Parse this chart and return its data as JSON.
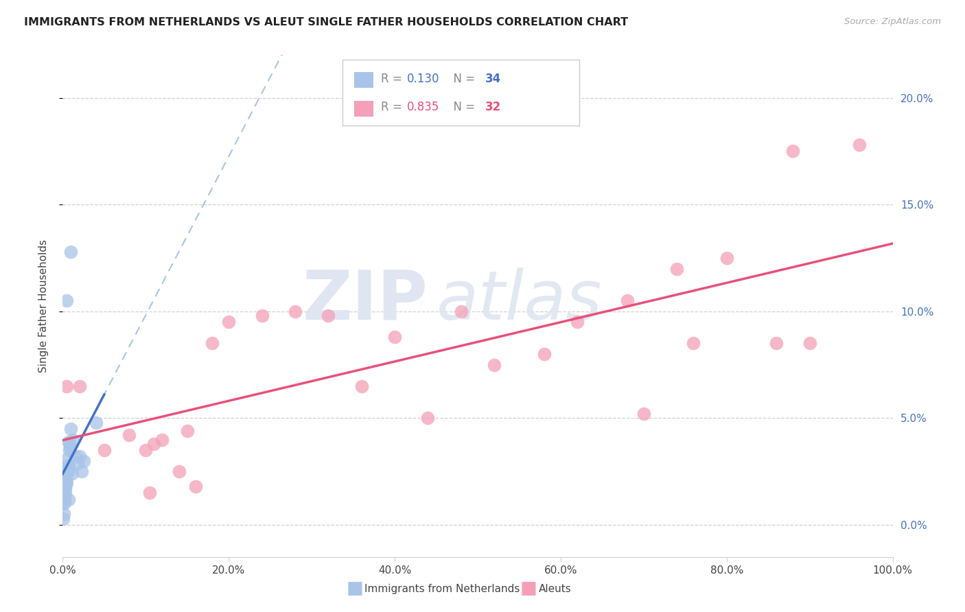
{
  "title": "IMMIGRANTS FROM NETHERLANDS VS ALEUT SINGLE FATHER HOUSEHOLDS CORRELATION CHART",
  "source": "Source: ZipAtlas.com",
  "ylabel": "Single Father Households",
  "legend_blue_label": "Immigrants from Netherlands",
  "legend_pink_label": "Aleuts",
  "blue_color": "#a8c4e8",
  "blue_line_color": "#4472c4",
  "pink_color": "#f4a0b8",
  "pink_line_color": "#e8507a",
  "legend_blue_r_val": "0.130",
  "legend_blue_n_val": "34",
  "legend_pink_r_val": "0.835",
  "legend_pink_n_val": "32",
  "ytick_vals": [
    0,
    5,
    10,
    15,
    20
  ],
  "ytick_labels": [
    "0.0%",
    "5.0%",
    "10.0%",
    "15.0%",
    "20.0%"
  ],
  "xtick_vals": [
    0,
    20,
    40,
    60,
    80,
    100
  ],
  "xtick_labels": [
    "0.0%",
    "20.0%",
    "40.0%",
    "60.0%",
    "80.0%",
    "100.0%"
  ],
  "xlim": [
    0,
    100
  ],
  "ylim": [
    -1.5,
    22
  ],
  "blue_x": [
    0.5,
    1.0,
    1.5,
    2.5,
    4.0,
    0.6,
    0.8,
    1.2,
    2.0,
    0.3,
    0.4,
    0.6,
    0.9,
    1.1,
    0.3,
    0.5,
    0.7,
    0.35,
    0.55,
    0.8,
    0.2,
    0.15,
    0.3,
    0.4,
    0.5,
    0.7,
    1.0,
    0.25,
    0.35,
    0.75,
    1.8,
    2.3,
    0.1,
    0.05
  ],
  "blue_y": [
    10.5,
    12.8,
    3.2,
    3.0,
    4.8,
    2.5,
    3.5,
    4.0,
    3.2,
    1.8,
    2.2,
    2.8,
    3.6,
    2.4,
    1.5,
    2.0,
    1.2,
    2.1,
    2.6,
    3.8,
    1.3,
    1.0,
    1.7,
    2.3,
    3.1,
    3.9,
    4.5,
    1.1,
    1.9,
    2.7,
    2.9,
    2.5,
    0.5,
    0.3
  ],
  "pink_x": [
    0.5,
    2.0,
    5.0,
    8.0,
    10.0,
    10.5,
    11.0,
    12.0,
    14.0,
    15.0,
    16.0,
    18.0,
    20.0,
    24.0,
    28.0,
    32.0,
    36.0,
    40.0,
    44.0,
    48.0,
    52.0,
    58.0,
    62.0,
    68.0,
    74.0,
    80.0,
    86.0,
    90.0,
    70.0,
    76.0,
    88.0,
    96.0
  ],
  "pink_y": [
    6.5,
    6.5,
    3.5,
    4.2,
    3.5,
    1.5,
    3.8,
    4.0,
    2.5,
    4.4,
    1.8,
    8.5,
    9.5,
    9.8,
    10.0,
    9.8,
    6.5,
    8.8,
    5.0,
    10.0,
    7.5,
    8.0,
    9.5,
    10.5,
    12.0,
    12.5,
    8.5,
    8.5,
    5.2,
    8.5,
    17.5,
    17.8
  ],
  "blue_trendline_x_end": 5.0,
  "grid_color": "#d0d0d0",
  "tick_color": "#888888"
}
